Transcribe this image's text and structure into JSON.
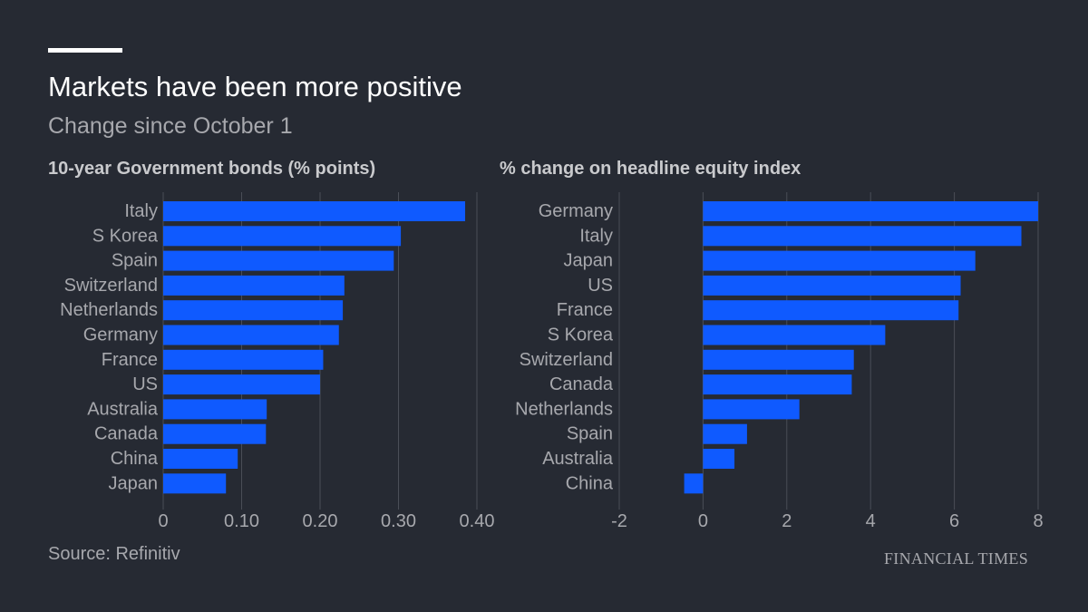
{
  "header": {
    "title": "Markets have been more positive",
    "subtitle": "Change since October 1"
  },
  "footer": {
    "source": "Source: Refinitiv",
    "brand": "FINANCIAL TIMES"
  },
  "colors": {
    "background": "#262a33",
    "bar": "#0f5aff",
    "grid": "#4a4e57",
    "text": "#a7a8ad"
  },
  "chart_data": [
    {
      "type": "bar",
      "orientation": "horizontal",
      "title": "10-year Government bonds (% points)",
      "categories": [
        "Italy",
        "S Korea",
        "Spain",
        "Switzerland",
        "Netherlands",
        "Germany",
        "France",
        "US",
        "Australia",
        "Canada",
        "China",
        "Japan"
      ],
      "values": [
        0.385,
        0.303,
        0.294,
        0.231,
        0.229,
        0.224,
        0.204,
        0.2,
        0.132,
        0.131,
        0.095,
        0.08
      ],
      "xlim": [
        0,
        0.4
      ],
      "ticks": [
        0,
        0.1,
        0.2,
        0.3,
        0.4
      ],
      "tick_labels": [
        "0",
        "0.10",
        "0.20",
        "0.30",
        "0.40"
      ],
      "grid": true
    },
    {
      "type": "bar",
      "orientation": "horizontal",
      "title": "% change on headline equity index",
      "categories": [
        "Germany",
        "Italy",
        "Japan",
        "US",
        "France",
        "S Korea",
        "Switzerland",
        "Canada",
        "Netherlands",
        "Spain",
        "Australia",
        "China"
      ],
      "values": [
        8.0,
        7.6,
        6.5,
        6.15,
        6.1,
        4.35,
        3.6,
        3.55,
        2.3,
        1.05,
        0.75,
        -0.45
      ],
      "xlim": [
        -2,
        8
      ],
      "ticks": [
        -2,
        0,
        2,
        4,
        6,
        8
      ],
      "tick_labels": [
        "-2",
        "0",
        "2",
        "4",
        "6",
        "8"
      ],
      "grid": true
    }
  ]
}
